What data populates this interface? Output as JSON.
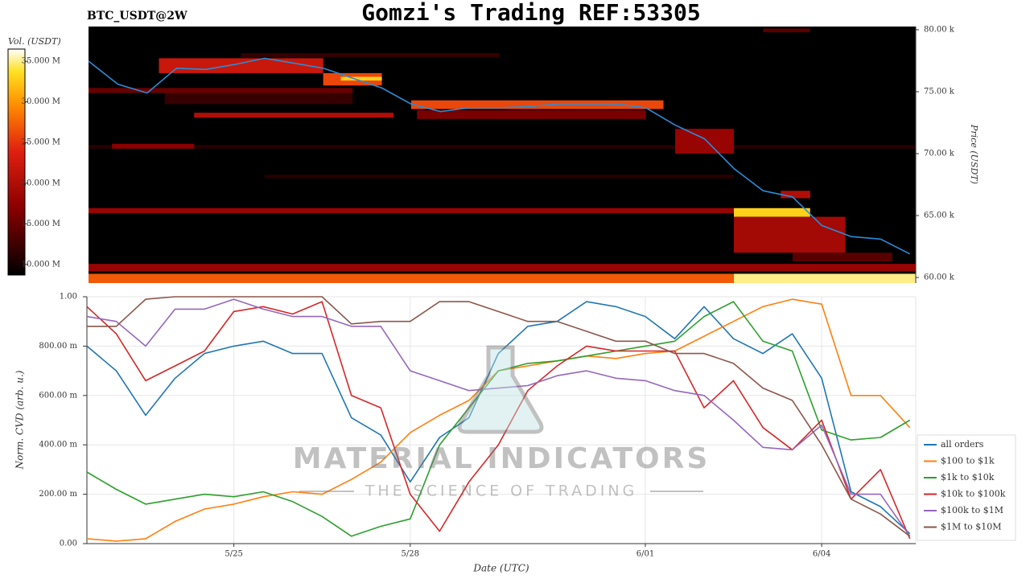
{
  "chart_data": [
    {
      "type": "heatmap",
      "title": "Gomzi's Trading REF:53305",
      "subtitle": "BTC_USDT@2W",
      "ylabel": "Price (USDT)",
      "xlim": [
        0,
        14.1
      ],
      "ylim": [
        59.55,
        80.26
      ],
      "yticks": [
        {
          "value": 60,
          "label": "60.00 k"
        },
        {
          "value": 65,
          "label": "65.00 k"
        },
        {
          "value": 70,
          "label": "70.00 k"
        },
        {
          "value": 75,
          "label": "75.00 k"
        },
        {
          "value": 80,
          "label": "80.00 k"
        }
      ],
      "colorbar": {
        "label": "Vol. (USDT)",
        "lim": [
          8.7,
          36.5
        ],
        "ticks": [
          {
            "value": 10,
            "label": "10.000 M"
          },
          {
            "value": 15,
            "label": "15.000 M"
          },
          {
            "value": 20,
            "label": "20.000 M"
          },
          {
            "value": 25,
            "label": "25.000 M"
          },
          {
            "value": 30,
            "label": "30.000 M"
          },
          {
            "value": 35,
            "label": "35.000 M"
          }
        ]
      },
      "cells": [
        {
          "x0": 0,
          "x1": 14.1,
          "y0": 70.4,
          "y1": 70.7,
          "value": 11
        },
        {
          "x0": 3,
          "x1": 11,
          "y0": 68.0,
          "y1": 68.3,
          "value": 11
        },
        {
          "x0": 1.3,
          "x1": 4.5,
          "y0": 74.0,
          "y1": 75.0,
          "value": 12
        },
        {
          "x0": 0,
          "x1": 11,
          "y0": 59.55,
          "y1": 60.3,
          "value": 27
        },
        {
          "x0": 11,
          "x1": 14.1,
          "y0": 59.55,
          "y1": 60.3,
          "value": 35
        },
        {
          "x0": 0,
          "x1": 14.1,
          "y0": 60.5,
          "y1": 61.1,
          "value": 18
        },
        {
          "x0": 0,
          "x1": 11,
          "y0": 65.2,
          "y1": 65.6,
          "value": 18
        },
        {
          "x0": 11,
          "x1": 12.3,
          "y0": 64.9,
          "y1": 65.6,
          "value": 33
        },
        {
          "x0": 1.8,
          "x1": 5.2,
          "y0": 72.9,
          "y1": 73.3,
          "value": 20
        },
        {
          "x0": 0.4,
          "x1": 1.8,
          "y0": 70.4,
          "y1": 70.8,
          "value": 17
        },
        {
          "x0": 0,
          "x1": 4.5,
          "y0": 74.9,
          "y1": 75.3,
          "value": 15
        },
        {
          "x0": 2.6,
          "x1": 7,
          "y0": 77.8,
          "y1": 78.1,
          "value": 12
        },
        {
          "x0": 1.2,
          "x1": 4,
          "y0": 76.5,
          "y1": 77.7,
          "value": 22
        },
        {
          "x0": 4,
          "x1": 5,
          "y0": 75.5,
          "y1": 76.5,
          "value": 26
        },
        {
          "x0": 4.3,
          "x1": 5,
          "y0": 75.9,
          "y1": 76.2,
          "value": 33
        },
        {
          "x0": 5.5,
          "x1": 9.8,
          "y0": 73.6,
          "y1": 74.3,
          "value": 26
        },
        {
          "x0": 5.6,
          "x1": 9.5,
          "y0": 72.8,
          "y1": 73.5,
          "value": 16
        },
        {
          "x0": 10,
          "x1": 11,
          "y0": 70,
          "y1": 72,
          "value": 18
        },
        {
          "x0": 11,
          "x1": 12.9,
          "y0": 62.0,
          "y1": 64.9,
          "value": 19
        },
        {
          "x0": 11.8,
          "x1": 12.3,
          "y0": 66.4,
          "y1": 67,
          "value": 20
        },
        {
          "x0": 12,
          "x1": 13.7,
          "y0": 61.3,
          "y1": 62.0,
          "value": 14
        },
        {
          "x0": 11.5,
          "x1": 12.3,
          "y0": 79.8,
          "y1": 80.1,
          "value": 14
        }
      ],
      "price": {
        "color": "#2b8cd8",
        "x": [
          0,
          0.5,
          1,
          1.5,
          2,
          2.5,
          3,
          3.5,
          4,
          4.5,
          5,
          5.5,
          6,
          6.5,
          7,
          7.5,
          8,
          8.5,
          9,
          9.5,
          10,
          10.5,
          11,
          11.5,
          12,
          12.5,
          13,
          13.5,
          14
        ],
        "values": [
          77.47,
          75.6,
          74.9,
          76.9,
          76.8,
          77.2,
          77.7,
          77.3,
          76.9,
          76.1,
          75.3,
          74.0,
          73.4,
          73.7,
          73.7,
          73.8,
          74.0,
          74.0,
          74.0,
          73.7,
          72.3,
          71.2,
          68.8,
          67.0,
          66.5,
          64.2,
          63.3,
          63.1,
          61.9
        ]
      }
    },
    {
      "type": "line",
      "xlabel": "Date (UTC)",
      "ylabel": "Norm. CVD (arb. u.)",
      "x": [
        0,
        0.5,
        1,
        1.5,
        2,
        2.5,
        3,
        3.5,
        4,
        4.5,
        5,
        5.5,
        6,
        6.5,
        7,
        7.5,
        8,
        8.5,
        9,
        9.5,
        10,
        10.5,
        11,
        11.5,
        12,
        12.5,
        13,
        13.5,
        14
      ],
      "xlim": [
        0,
        14.1
      ],
      "xticks": [
        {
          "value": 2.5,
          "label": "5/25"
        },
        {
          "value": 5.5,
          "label": "5/28"
        },
        {
          "value": 9.5,
          "label": "6/01"
        },
        {
          "value": 12.5,
          "label": "6/04"
        }
      ],
      "ylim": [
        0,
        1
      ],
      "yticks": [
        {
          "value": 0,
          "label": "0.00"
        },
        {
          "value": 0.2,
          "label": "200.00 m"
        },
        {
          "value": 0.4,
          "label": "400.00 m"
        },
        {
          "value": 0.6,
          "label": "600.00 m"
        },
        {
          "value": 0.8,
          "label": "800.00 m"
        },
        {
          "value": 1,
          "label": "1.00"
        }
      ],
      "grid": true,
      "legend": "lower right",
      "watermark": {
        "title": "MATERIAL INDICATORS",
        "subtitle": "THE SCIENCE OF TRADING"
      },
      "series": [
        {
          "name": "all orders",
          "color": "#1f77b4",
          "values": [
            0.8,
            0.7,
            0.52,
            0.67,
            0.77,
            0.8,
            0.82,
            0.77,
            0.77,
            0.51,
            0.44,
            0.25,
            0.43,
            0.51,
            0.77,
            0.88,
            0.9,
            0.98,
            0.96,
            0.92,
            0.83,
            0.96,
            0.83,
            0.77,
            0.85,
            0.67,
            0.21,
            0.15,
            0.04
          ]
        },
        {
          "name": "$100 to $1k",
          "color": "#ff7f0e",
          "values": [
            0.02,
            0.01,
            0.02,
            0.09,
            0.14,
            0.16,
            0.19,
            0.21,
            0.2,
            0.26,
            0.33,
            0.45,
            0.52,
            0.58,
            0.7,
            0.72,
            0.74,
            0.76,
            0.75,
            0.77,
            0.78,
            0.84,
            0.9,
            0.96,
            0.99,
            0.97,
            0.6,
            0.6,
            0.47
          ]
        },
        {
          "name": "$1k to $10k",
          "color": "#2ca02c",
          "values": [
            0.29,
            0.22,
            0.16,
            0.18,
            0.2,
            0.19,
            0.21,
            0.17,
            0.11,
            0.03,
            0.07,
            0.1,
            0.4,
            0.55,
            0.7,
            0.73,
            0.74,
            0.76,
            0.78,
            0.8,
            0.82,
            0.92,
            0.98,
            0.82,
            0.78,
            0.46,
            0.42,
            0.43,
            0.5
          ]
        },
        {
          "name": "$10k to $100k",
          "color": "#d62728",
          "values": [
            0.96,
            0.85,
            0.66,
            0.72,
            0.78,
            0.94,
            0.96,
            0.93,
            0.98,
            0.6,
            0.55,
            0.2,
            0.05,
            0.25,
            0.4,
            0.62,
            0.72,
            0.8,
            0.78,
            0.78,
            0.78,
            0.55,
            0.66,
            0.47,
            0.38,
            0.5,
            0.18,
            0.3,
            0.02
          ]
        },
        {
          "name": "$100k to $1M",
          "color": "#9467bd",
          "values": [
            0.92,
            0.9,
            0.8,
            0.95,
            0.95,
            0.99,
            0.95,
            0.92,
            0.92,
            0.88,
            0.88,
            0.7,
            0.66,
            0.62,
            0.63,
            0.64,
            0.68,
            0.7,
            0.67,
            0.66,
            0.62,
            0.6,
            0.5,
            0.39,
            0.38,
            0.48,
            0.2,
            0.2,
            0.03
          ]
        },
        {
          "name": "$1M to $10M",
          "color": "#8c564b",
          "values": [
            0.88,
            0.88,
            0.99,
            1,
            1,
            1,
            1,
            1,
            1,
            0.89,
            0.9,
            0.9,
            0.98,
            0.98,
            0.94,
            0.9,
            0.9,
            0.86,
            0.82,
            0.82,
            0.77,
            0.77,
            0.73,
            0.63,
            0.58,
            0.4,
            0.18,
            0.12,
            0.03
          ]
        }
      ]
    }
  ]
}
